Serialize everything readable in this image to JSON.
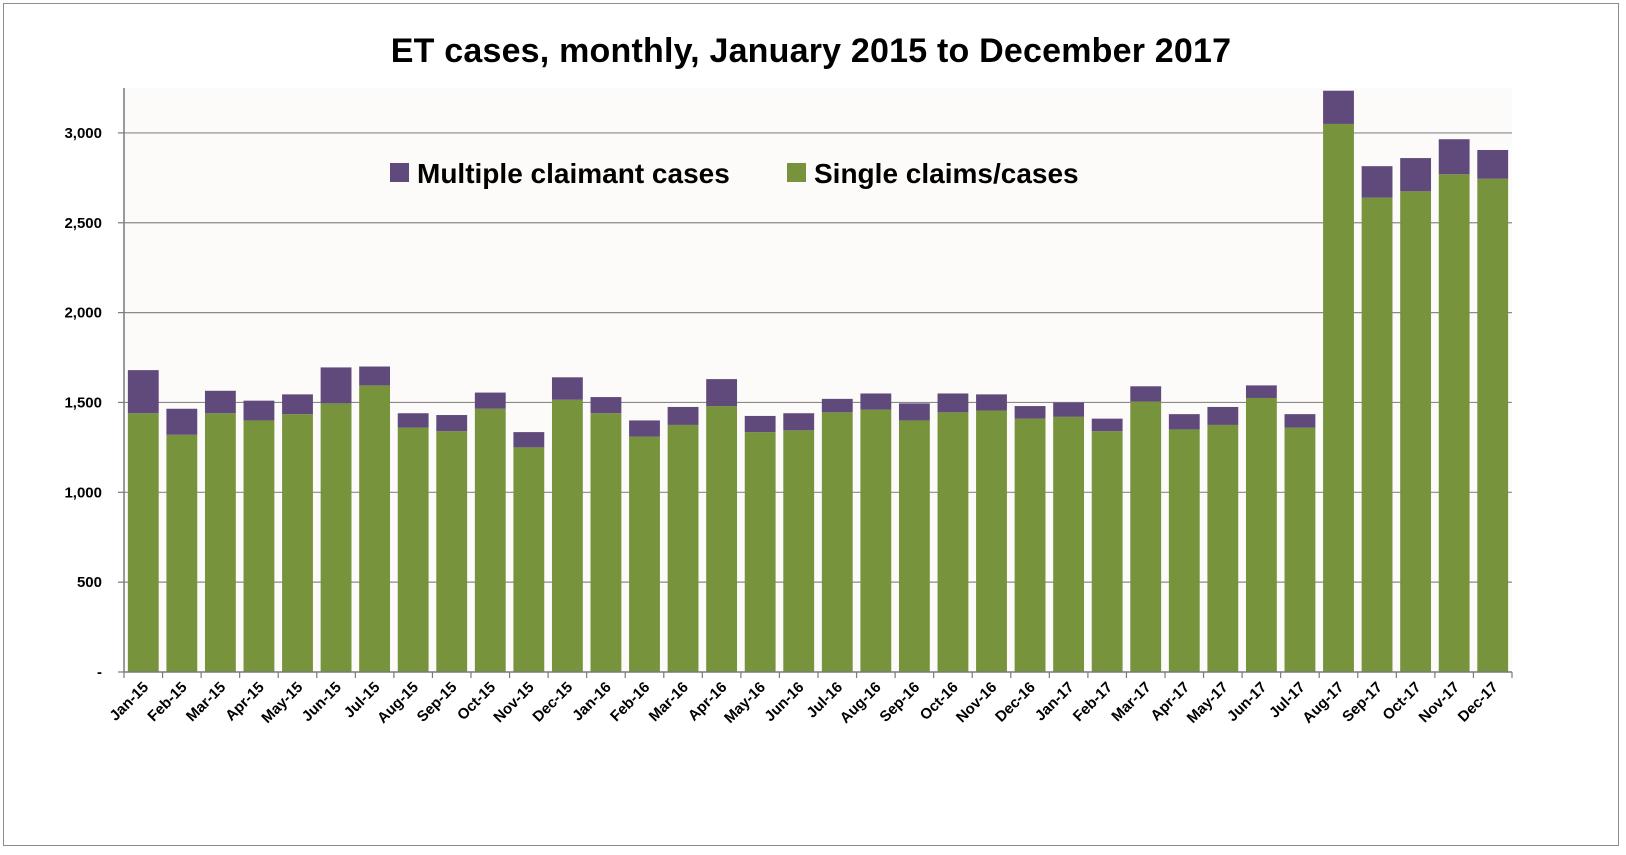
{
  "chart_data": {
    "type": "bar",
    "stacked": true,
    "title": "ET cases, monthly, January 2015 to December 2017",
    "xlabel": "",
    "ylabel": "",
    "ylim": [
      0,
      3250
    ],
    "yticks": [
      0,
      500,
      1000,
      1500,
      2000,
      2500,
      3000
    ],
    "ytick_labels": [
      "-",
      "500",
      "1,000",
      "1,500",
      "2,000",
      "2,500",
      "3,000"
    ],
    "grid": true,
    "legend_position": "top-center",
    "categories": [
      "Jan-15",
      "Feb-15",
      "Mar-15",
      "Apr-15",
      "May-15",
      "Jun-15",
      "Jul-15",
      "Aug-15",
      "Sep-15",
      "Oct-15",
      "Nov-15",
      "Dec-15",
      "Jan-16",
      "Feb-16",
      "Mar-16",
      "Apr-16",
      "May-16",
      "Jun-16",
      "Jul-16",
      "Aug-16",
      "Sep-16",
      "Oct-16",
      "Nov-16",
      "Dec-16",
      "Jan-17",
      "Feb-17",
      "Mar-17",
      "Apr-17",
      "May-17",
      "Jun-17",
      "Jul-17",
      "Aug-17",
      "Sep-17",
      "Oct-17",
      "Nov-17",
      "Dec-17"
    ],
    "series": [
      {
        "name": "Single claims/cases",
        "color": "#77933c",
        "values": [
          1440,
          1320,
          1440,
          1400,
          1435,
          1495,
          1595,
          1360,
          1340,
          1465,
          1250,
          1515,
          1440,
          1310,
          1375,
          1480,
          1335,
          1345,
          1445,
          1460,
          1400,
          1445,
          1455,
          1410,
          1420,
          1340,
          1505,
          1350,
          1375,
          1525,
          1360,
          3050,
          2640,
          2675,
          2770,
          2745
        ]
      },
      {
        "name": "Multiple claimant cases",
        "color": "#604a7b",
        "values": [
          240,
          145,
          125,
          110,
          110,
          200,
          105,
          80,
          90,
          90,
          85,
          125,
          90,
          90,
          100,
          150,
          90,
          95,
          75,
          90,
          95,
          105,
          90,
          70,
          80,
          70,
          85,
          85,
          100,
          70,
          75,
          185,
          175,
          185,
          195,
          160
        ]
      }
    ]
  }
}
